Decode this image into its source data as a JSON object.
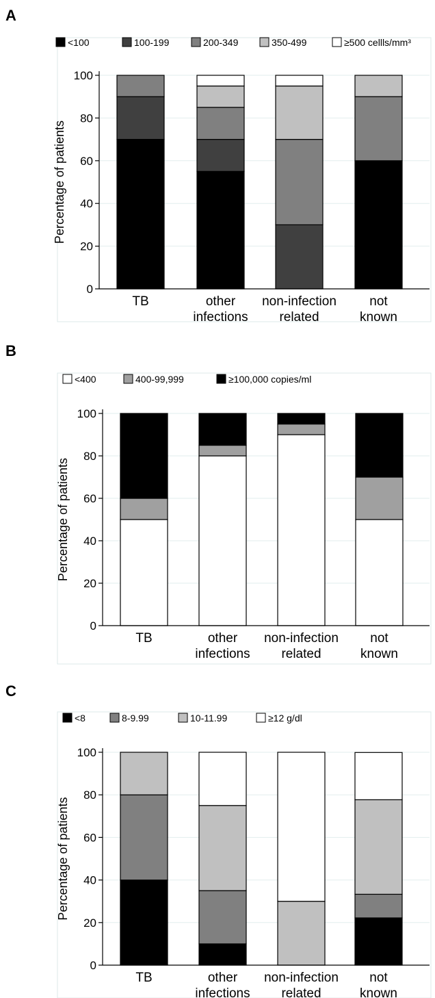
{
  "chart_data": [
    {
      "panel": "A",
      "type": "bar",
      "stacked": true,
      "ylabel": "Percentage of patients",
      "ylim": [
        0,
        100
      ],
      "yticks": [
        "0",
        "20",
        "40",
        "60",
        "80",
        "100"
      ],
      "categories": [
        [
          "TB"
        ],
        [
          "other",
          "infections"
        ],
        [
          "non-infection",
          "related"
        ],
        [
          "not",
          "known"
        ]
      ],
      "grid": true,
      "legend_position": "top",
      "series": [
        {
          "name": "<100",
          "color": "#000000",
          "values": [
            70,
            55,
            0,
            60
          ]
        },
        {
          "name": "100-199",
          "color": "#404040",
          "values": [
            20,
            15,
            30,
            0
          ]
        },
        {
          "name": "200-349",
          "color": "#808080",
          "values": [
            10,
            15,
            40,
            30
          ]
        },
        {
          "name": "350-499",
          "color": "#c0c0c0",
          "values": [
            0,
            10,
            25,
            10
          ]
        },
        {
          "name": "≥500 cellls/mm³",
          "color": "#ffffff",
          "values": [
            0,
            5,
            5,
            0
          ]
        }
      ]
    },
    {
      "panel": "B",
      "type": "bar",
      "stacked": true,
      "ylabel": "Percentage of patients",
      "ylim": [
        0,
        100
      ],
      "yticks": [
        "0",
        "20",
        "40",
        "60",
        "80",
        "100"
      ],
      "categories": [
        [
          "TB"
        ],
        [
          "other",
          "infections"
        ],
        [
          "non-infection",
          "related"
        ],
        [
          "not",
          "known"
        ]
      ],
      "grid": true,
      "legend_position": "top",
      "series": [
        {
          "name": "<400",
          "color": "#ffffff",
          "values": [
            50,
            80,
            90,
            50
          ]
        },
        {
          "name": "400-99,999",
          "color": "#a0a0a0",
          "values": [
            10,
            5,
            5,
            20
          ]
        },
        {
          "name": "≥100,000 copies/ml",
          "color": "#000000",
          "values": [
            40,
            15,
            5,
            30
          ]
        }
      ]
    },
    {
      "panel": "C",
      "type": "bar",
      "stacked": true,
      "ylabel": "Percentage of patients",
      "ylim": [
        0,
        100
      ],
      "yticks": [
        "0",
        "20",
        "40",
        "60",
        "80",
        "100"
      ],
      "categories": [
        [
          "TB"
        ],
        [
          "other",
          "infections"
        ],
        [
          "non-infection",
          "related"
        ],
        [
          "not",
          "known"
        ]
      ],
      "grid": true,
      "legend_position": "top",
      "series": [
        {
          "name": "<8",
          "color": "#000000",
          "values": [
            40,
            10,
            0,
            22.2
          ]
        },
        {
          "name": "8-9.99",
          "color": "#808080",
          "values": [
            40,
            25,
            0,
            11.1
          ]
        },
        {
          "name": "10-11.99",
          "color": "#c0c0c0",
          "values": [
            20,
            40,
            30,
            44.4
          ]
        },
        {
          "name": "≥12 g/dl",
          "color": "#ffffff",
          "values": [
            0,
            25,
            70,
            22.2
          ]
        }
      ]
    }
  ]
}
